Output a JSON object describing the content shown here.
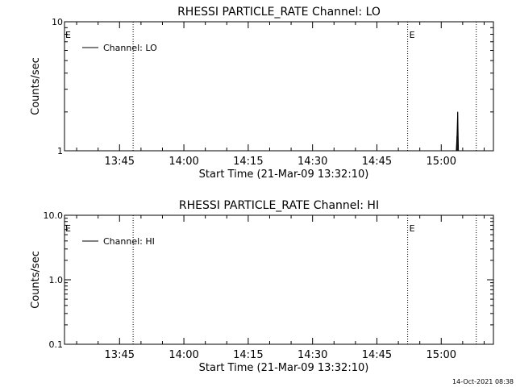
{
  "chart_data": [
    {
      "type": "line",
      "title": "RHESSI PARTICLE_RATE Channel: LO",
      "xlabel": "Start Time (21-Mar-09 13:32:10)",
      "ylabel": "Counts/sec",
      "y_scale": "log",
      "ylim": [
        1,
        10
      ],
      "y_tick_labels": [
        "1",
        "10"
      ],
      "x_tick_labels": [
        "13:45",
        "14:00",
        "14:15",
        "14:30",
        "14:45",
        "15:00"
      ],
      "x_range": [
        "13:32:10",
        "15:12:10"
      ],
      "legend": {
        "position": "top-left",
        "entries": [
          "Channel: LO"
        ]
      },
      "vertical_markers": [
        {
          "time": "13:48:10",
          "label": ""
        },
        {
          "time": "14:52:10",
          "label": "E"
        },
        {
          "time": "15:08:10",
          "label": ""
        }
      ],
      "edge_marker_label": "E",
      "series": [
        {
          "name": "Channel: LO",
          "points": [
            {
              "t": "15:03:30",
              "y": 1.0
            },
            {
              "t": "15:03:40",
              "y": 1.3
            },
            {
              "t": "15:03:50",
              "y": 2.0
            },
            {
              "t": "15:04:00",
              "y": 1.0
            }
          ]
        }
      ],
      "grid": false
    },
    {
      "type": "line",
      "title": "RHESSI PARTICLE_RATE Channel: HI",
      "xlabel": "Start Time (21-Mar-09 13:32:10)",
      "ylabel": "Counts/sec",
      "y_scale": "log",
      "ylim": [
        0.1,
        10
      ],
      "y_tick_labels": [
        "0.1",
        "1.0",
        "10.0"
      ],
      "x_tick_labels": [
        "13:45",
        "14:00",
        "14:15",
        "14:30",
        "14:45",
        "15:00"
      ],
      "x_range": [
        "13:32:10",
        "15:12:10"
      ],
      "legend": {
        "position": "top-left",
        "entries": [
          "Channel: HI"
        ]
      },
      "vertical_markers": [
        {
          "time": "13:48:10",
          "label": ""
        },
        {
          "time": "14:52:10",
          "label": "E"
        },
        {
          "time": "15:08:10",
          "label": ""
        }
      ],
      "edge_marker_label": "E",
      "series": [
        {
          "name": "Channel: HI",
          "points": []
        }
      ],
      "grid": false
    }
  ],
  "footer": {
    "timestamp": "14-Oct-2021 08:38"
  }
}
